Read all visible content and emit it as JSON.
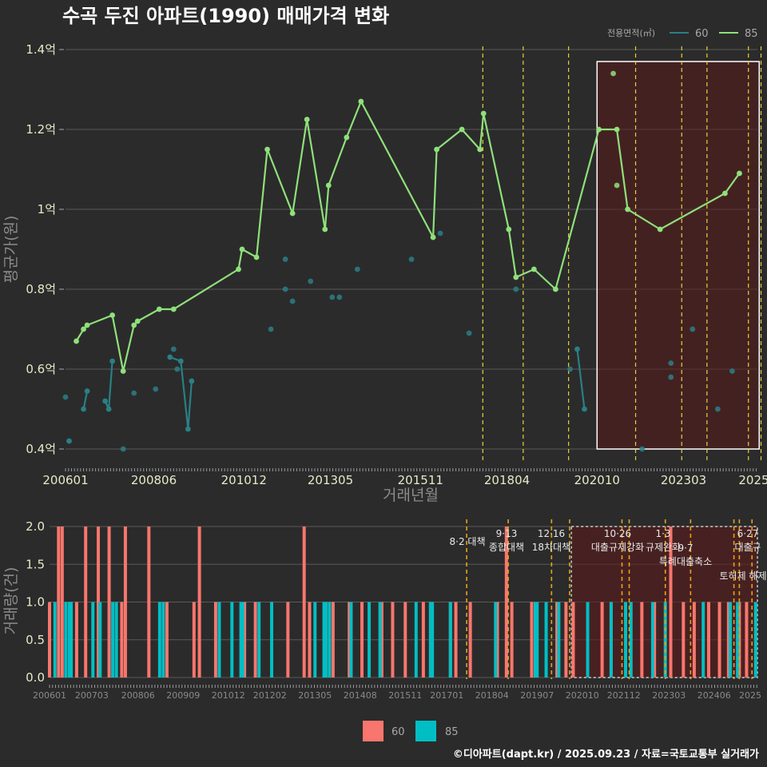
{
  "title": "수곡 두진 아파트(1990) 매매가격 변화",
  "footer": "©디아파트(dapt.kr) / 2025.09.23 / 자료=국토교통부 실거래가",
  "colors": {
    "background": "#2b2b2b",
    "s60_line": "#2a7f86",
    "s85_line": "#8fe07a",
    "bar60": "#f8766d",
    "bar85": "#00bfc4",
    "highlight_fill": "#5a1a1a",
    "policy_line": "#e6d23a",
    "policy_line2": "#e6a21a"
  },
  "chart_data": [
    {
      "type": "line",
      "title": "수곡 두진 아파트(1990) 매매가격 변화",
      "xlabel": "거래년월",
      "ylabel": "평균가(원)",
      "x_ticks": [
        "200601",
        "200806",
        "201012",
        "201305",
        "201511",
        "201804",
        "202010",
        "202303",
        "2025"
      ],
      "y_ticks": [
        "0.4억",
        "0.6억",
        "0.8억",
        "1억",
        "1.2억",
        "1.4억"
      ],
      "ylim": [
        0.4,
        1.4
      ],
      "y_unit": "억",
      "grid": true,
      "legend_title": "전용면적(㎡)",
      "legend_position": "top-right",
      "policy_dates": [
        2017.58,
        2018.7,
        2019.96,
        2021.82,
        2023.1,
        2023.8,
        2024.95,
        2025.3
      ],
      "highlight_range": [
        2020.75,
        2025.25
      ],
      "highlight_ylim": [
        0.4,
        1.37
      ],
      "series": [
        {
          "name": "60",
          "segments": [
            [
              [
                2006.1,
                0.42
              ]
            ],
            [
              [
                2006.5,
                0.5
              ],
              [
                2006.6,
                0.545
              ]
            ],
            [
              [
                2007.1,
                0.52
              ],
              [
                2007.2,
                0.5
              ],
              [
                2007.3,
                0.62
              ]
            ],
            [
              [
                2008.9,
                0.63
              ],
              [
                2009.2,
                0.62
              ],
              [
                2009.4,
                0.45
              ],
              [
                2009.5,
                0.57
              ]
            ],
            [
              [
                2020.2,
                0.65
              ],
              [
                2020.4,
                0.5
              ]
            ]
          ],
          "points": [
            [
              2006.0,
              0.53
            ],
            [
              2007.6,
              0.4
            ],
            [
              2007.9,
              0.54
            ],
            [
              2008.5,
              0.55
            ],
            [
              2009.0,
              0.65
            ],
            [
              2009.1,
              0.6
            ],
            [
              2011.7,
              0.7
            ],
            [
              2012.1,
              0.875
            ],
            [
              2012.1,
              0.8
            ],
            [
              2012.3,
              0.77
            ],
            [
              2012.8,
              0.82
            ],
            [
              2013.4,
              0.78
            ],
            [
              2013.6,
              0.78
            ],
            [
              2014.1,
              0.85
            ],
            [
              2015.6,
              0.875
            ],
            [
              2016.4,
              0.94
            ],
            [
              2017.2,
              0.69
            ],
            [
              2018.5,
              0.8
            ],
            [
              2020.0,
              0.6
            ],
            [
              2022.0,
              0.4
            ],
            [
              2022.8,
              0.615
            ],
            [
              2022.8,
              0.58
            ],
            [
              2023.4,
              0.7
            ],
            [
              2024.1,
              0.5
            ],
            [
              2024.5,
              0.595
            ]
          ]
        },
        {
          "name": "85",
          "segments": [
            [
              [
                2006.3,
                0.67
              ],
              [
                2006.5,
                0.7
              ],
              [
                2006.6,
                0.71
              ],
              [
                2007.3,
                0.735
              ],
              [
                2007.6,
                0.595
              ],
              [
                2007.9,
                0.71
              ],
              [
                2008.0,
                0.72
              ],
              [
                2008.6,
                0.75
              ],
              [
                2009.0,
                0.75
              ],
              [
                2010.8,
                0.85
              ],
              [
                2010.9,
                0.9
              ],
              [
                2011.3,
                0.88
              ],
              [
                2011.6,
                1.15
              ],
              [
                2012.3,
                0.99
              ],
              [
                2012.7,
                1.225
              ],
              [
                2013.2,
                0.95
              ],
              [
                2013.3,
                1.06
              ],
              [
                2013.8,
                1.18
              ],
              [
                2014.2,
                1.27
              ],
              [
                2016.2,
                0.93
              ],
              [
                2016.3,
                1.15
              ],
              [
                2017.0,
                1.2
              ],
              [
                2017.5,
                1.15
              ],
              [
                2017.6,
                1.24
              ],
              [
                2018.3,
                0.95
              ],
              [
                2018.5,
                0.83
              ],
              [
                2019.0,
                0.85
              ],
              [
                2019.6,
                0.8
              ],
              [
                2020.8,
                1.2
              ],
              [
                2021.3,
                1.2
              ],
              [
                2021.6,
                1.0
              ],
              [
                2022.5,
                0.95
              ],
              [
                2024.3,
                1.04
              ],
              [
                2024.7,
                1.09
              ]
            ]
          ],
          "points": [
            [
              2021.2,
              1.34
            ],
            [
              2021.3,
              1.06
            ]
          ]
        }
      ]
    },
    {
      "type": "bar",
      "ylabel": "거래량(건)",
      "x_ticks": [
        "200601",
        "200703",
        "200806",
        "200909",
        "201012",
        "201202",
        "201305",
        "201408",
        "201511",
        "201701",
        "201804",
        "201907",
        "202010",
        "202112",
        "202303",
        "202406",
        "2025"
      ],
      "y_ticks": [
        "0.0",
        "0.5",
        "1.0",
        "1.5",
        "2.0"
      ],
      "ylim": [
        0,
        2.1
      ],
      "legend": [
        "60",
        "85"
      ],
      "legend_position": "bottom",
      "annotations": [
        {
          "date": "8·2 대책",
          "label": ""
        },
        {
          "date": "9·13",
          "label": "종합대책"
        },
        {
          "date": "12·16",
          "label": "18차대책"
        },
        {
          "date": "10·26",
          "label": "대출규제강화"
        },
        {
          "date": "1·3",
          "label": "규제완화"
        },
        {
          "date": "9·7",
          "label": "특례대출축소"
        },
        {
          "date": "6·27",
          "label": "대출규"
        },
        {
          "date": "",
          "label": "토허제 해제"
        }
      ],
      "series": [
        {
          "name": "60",
          "values": [
            [
              2006.0,
              1
            ],
            [
              2006.25,
              2
            ],
            [
              2006.35,
              2
            ],
            [
              2006.75,
              1
            ],
            [
              2007.0,
              2
            ],
            [
              2007.35,
              2
            ],
            [
              2007.65,
              2
            ],
            [
              2008.0,
              1
            ],
            [
              2008.1,
              2
            ],
            [
              2008.75,
              2
            ],
            [
              2009.25,
              1
            ],
            [
              2010.0,
              1
            ],
            [
              2010.15,
              2
            ],
            [
              2010.6,
              1
            ],
            [
              2011.4,
              1
            ],
            [
              2011.7,
              1
            ],
            [
              2012.6,
              1
            ],
            [
              2013.05,
              2
            ],
            [
              2013.2,
              1
            ],
            [
              2013.65,
              1
            ],
            [
              2013.85,
              1
            ],
            [
              2014.3,
              1
            ],
            [
              2014.65,
              1
            ],
            [
              2015.2,
              1
            ],
            [
              2015.5,
              1
            ],
            [
              2015.85,
              1
            ],
            [
              2016.35,
              1
            ],
            [
              2016.55,
              1
            ],
            [
              2017.1,
              1
            ],
            [
              2017.25,
              1
            ],
            [
              2017.65,
              1
            ],
            [
              2018.4,
              1
            ],
            [
              2018.65,
              2
            ],
            [
              2018.8,
              1
            ],
            [
              2019.35,
              1
            ],
            [
              2020.05,
              1
            ],
            [
              2020.3,
              1
            ],
            [
              2020.5,
              1
            ],
            [
              2021.3,
              1
            ],
            [
              2021.55,
              1
            ],
            [
              2022.4,
              1
            ],
            [
              2022.75,
              1
            ],
            [
              2023.2,
              2
            ],
            [
              2023.55,
              1
            ],
            [
              2023.85,
              1
            ],
            [
              2024.25,
              1
            ],
            [
              2024.55,
              1
            ],
            [
              2024.8,
              1
            ],
            [
              2025.1,
              1
            ],
            [
              2025.3,
              1
            ]
          ]
        },
        {
          "name": "85",
          "values": [
            [
              2006.15,
              1
            ],
            [
              2006.45,
              1
            ],
            [
              2006.55,
              1
            ],
            [
              2006.6,
              1
            ],
            [
              2007.2,
              1
            ],
            [
              2007.4,
              1
            ],
            [
              2007.75,
              1
            ],
            [
              2007.85,
              1
            ],
            [
              2009.05,
              1
            ],
            [
              2009.15,
              1
            ],
            [
              2010.7,
              1
            ],
            [
              2011.05,
              1
            ],
            [
              2011.3,
              1
            ],
            [
              2011.35,
              1
            ],
            [
              2011.8,
              1
            ],
            [
              2012.15,
              1
            ],
            [
              2013.35,
              1
            ],
            [
              2013.6,
              1
            ],
            [
              2013.65,
              1
            ],
            [
              2013.75,
              1
            ],
            [
              2014.35,
              1
            ],
            [
              2014.85,
              1
            ],
            [
              2015.15,
              1
            ],
            [
              2016.15,
              1
            ],
            [
              2016.55,
              1
            ],
            [
              2016.6,
              1
            ],
            [
              2017.1,
              1
            ],
            [
              2018.35,
              1
            ],
            [
              2019.45,
              1
            ],
            [
              2019.5,
              1
            ],
            [
              2019.75,
              1
            ],
            [
              2020.1,
              1
            ],
            [
              2020.9,
              1
            ],
            [
              2021.55,
              1
            ],
            [
              2021.95,
              1
            ],
            [
              2022.1,
              1
            ],
            [
              2022.7,
              1
            ],
            [
              2023.05,
              1
            ],
            [
              2024.1,
              1
            ],
            [
              2024.85,
              1
            ],
            [
              2025.05,
              1
            ],
            [
              2025.55,
              1
            ]
          ]
        }
      ]
    }
  ]
}
